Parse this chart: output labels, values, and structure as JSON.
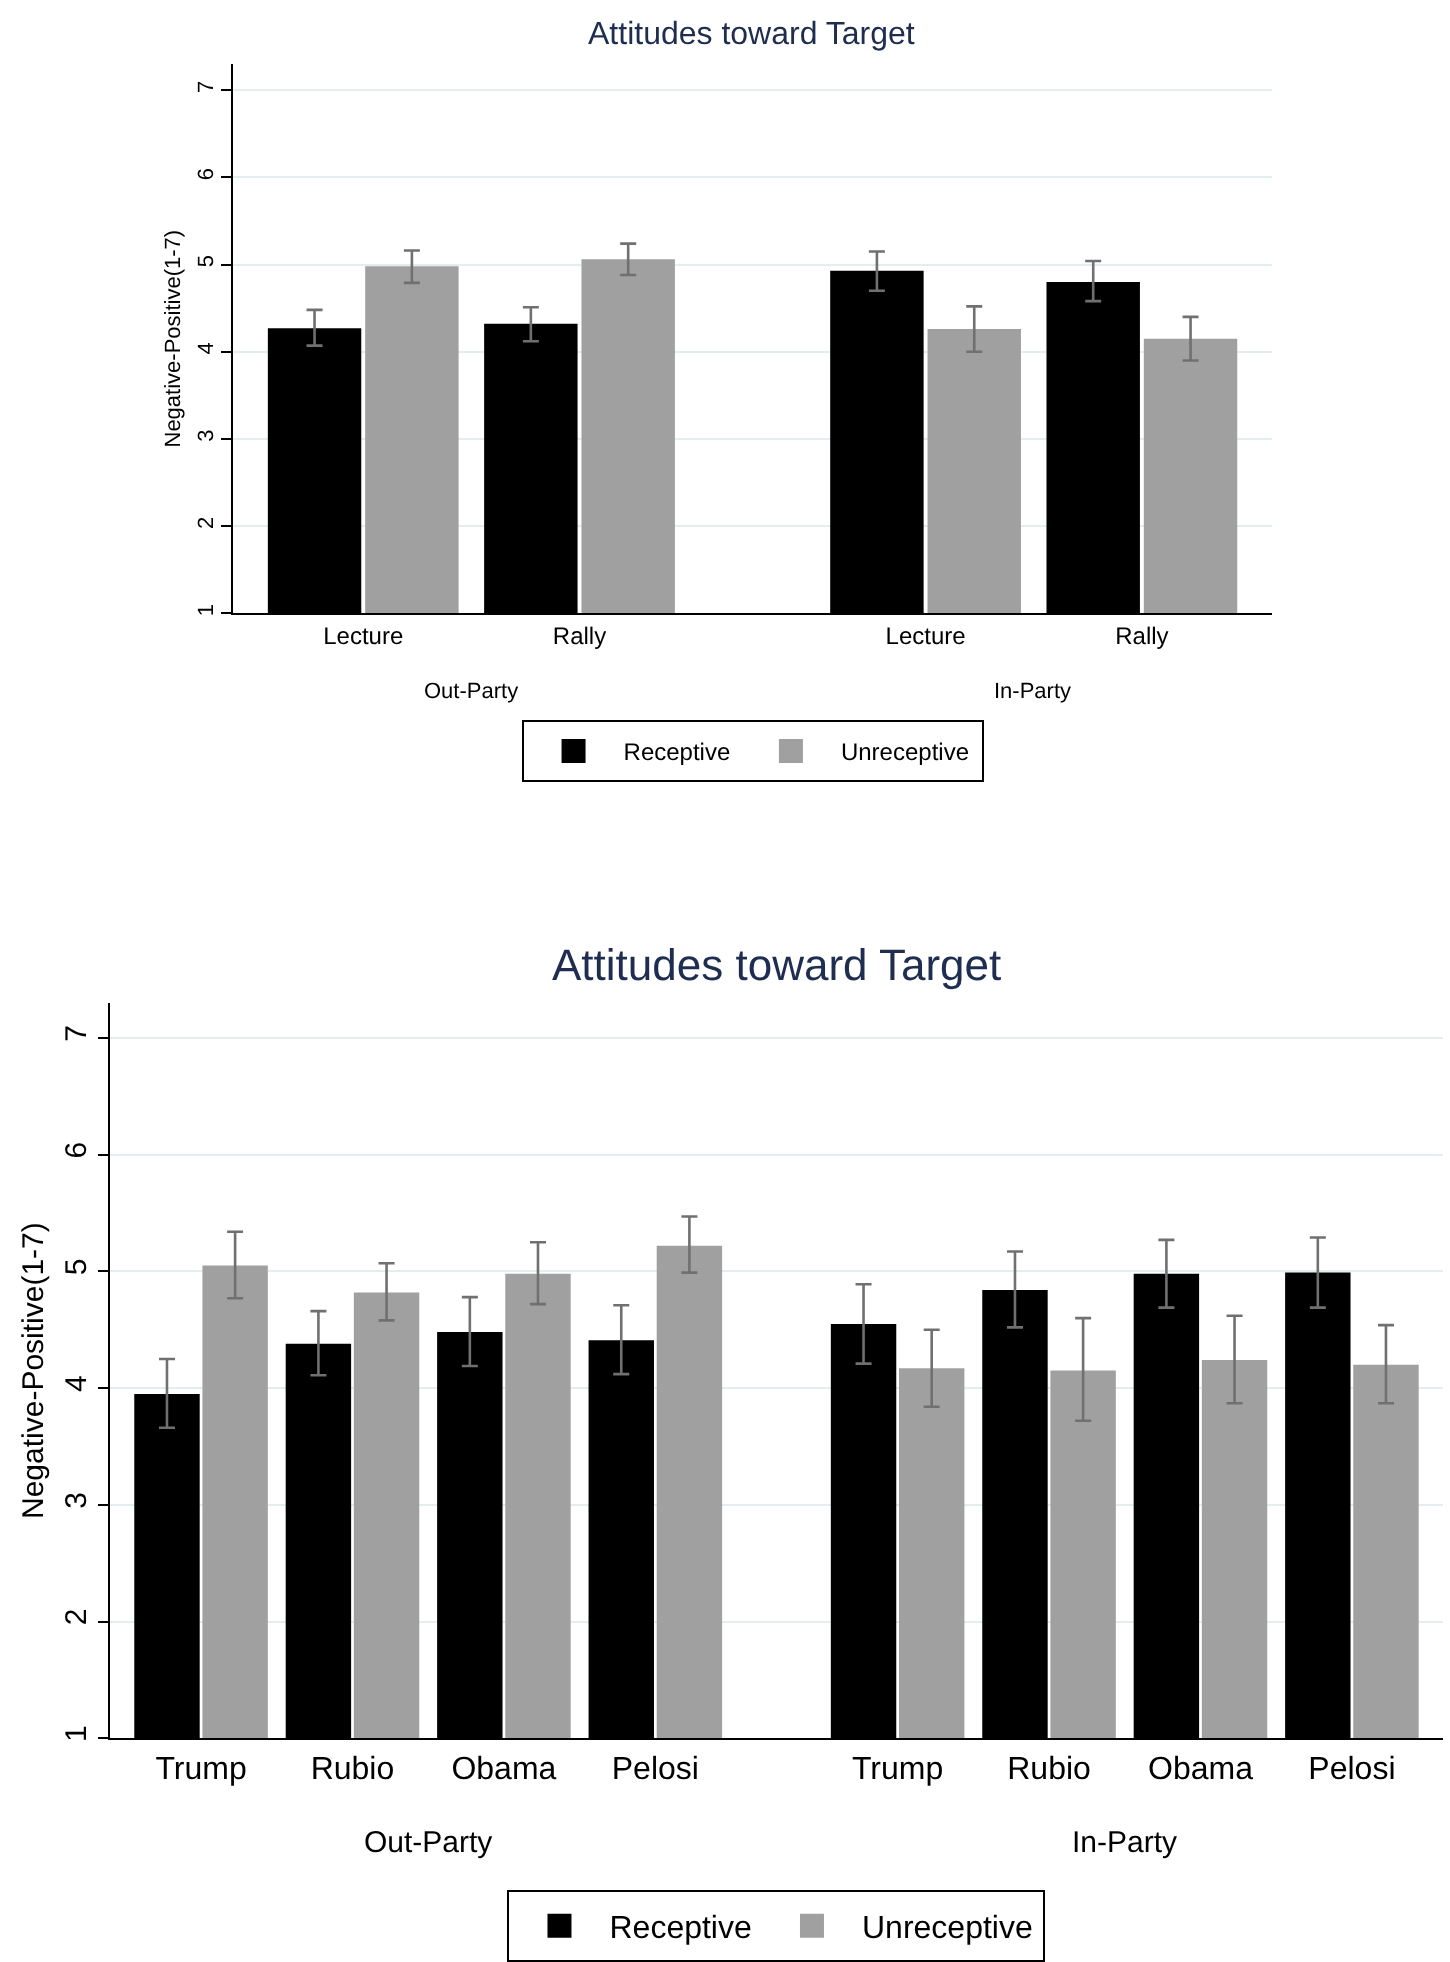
{
  "chart_data": [
    {
      "type": "bar",
      "title": "Attitudes toward Target",
      "ylabel": "Negative-Positive(1-7)",
      "categories": [
        "Lecture",
        "Rally",
        "Lecture",
        "Rally"
      ],
      "annotations": [
        "Out-Party",
        "In-Party"
      ],
      "ylim": [
        1,
        7.3
      ],
      "yticks": [
        1,
        2,
        3,
        4,
        5,
        6,
        7
      ],
      "grid": "y",
      "legend": "bottom",
      "series": [
        {
          "name": "Receptive",
          "color": "#000000",
          "values": [
            4.27,
            4.32,
            4.93,
            4.8
          ],
          "errors": [
            [
              4.07,
              4.48
            ],
            [
              4.12,
              4.51
            ],
            [
              4.7,
              5.15
            ],
            [
              4.58,
              5.04
            ]
          ]
        },
        {
          "name": "Unreceptive",
          "color": "#a0a0a0",
          "values": [
            4.98,
            5.06,
            4.26,
            4.15
          ],
          "errors": [
            [
              4.79,
              5.16
            ],
            [
              4.88,
              5.24
            ],
            [
              4.0,
              4.52
            ],
            [
              3.9,
              4.4
            ]
          ]
        }
      ]
    },
    {
      "type": "bar",
      "title": "Attitudes toward Target",
      "ylabel": "Negative-Positive(1-7)",
      "categories": [
        "Trump",
        "Rubio",
        "Obama",
        "Pelosi",
        "Trump",
        "Rubio",
        "Obama",
        "Pelosi"
      ],
      "annotations": [
        "Out-Party",
        "In-Party"
      ],
      "ylim": [
        1,
        7.3
      ],
      "yticks": [
        1,
        2,
        3,
        4,
        5,
        6,
        7
      ],
      "grid": "y",
      "legend": "bottom",
      "series": [
        {
          "name": "Receptive",
          "color": "#000000",
          "values": [
            3.95,
            4.38,
            4.48,
            4.41,
            4.55,
            4.84,
            4.98,
            4.99
          ],
          "errors": [
            [
              3.66,
              4.25
            ],
            [
              4.11,
              4.66
            ],
            [
              4.19,
              4.78
            ],
            [
              4.12,
              4.71
            ],
            [
              4.21,
              4.89
            ],
            [
              4.52,
              5.17
            ],
            [
              4.69,
              5.27
            ],
            [
              4.69,
              5.29
            ]
          ]
        },
        {
          "name": "Unreceptive",
          "color": "#a0a0a0",
          "values": [
            5.05,
            4.82,
            4.98,
            5.22,
            4.17,
            4.15,
            4.24,
            4.2
          ],
          "errors": [
            [
              4.77,
              5.34
            ],
            [
              4.58,
              5.07
            ],
            [
              4.72,
              5.25
            ],
            [
              4.99,
              5.47
            ],
            [
              3.84,
              4.5
            ],
            [
              3.72,
              4.6
            ],
            [
              3.87,
              4.62
            ],
            [
              3.87,
              4.54
            ]
          ]
        }
      ]
    }
  ]
}
